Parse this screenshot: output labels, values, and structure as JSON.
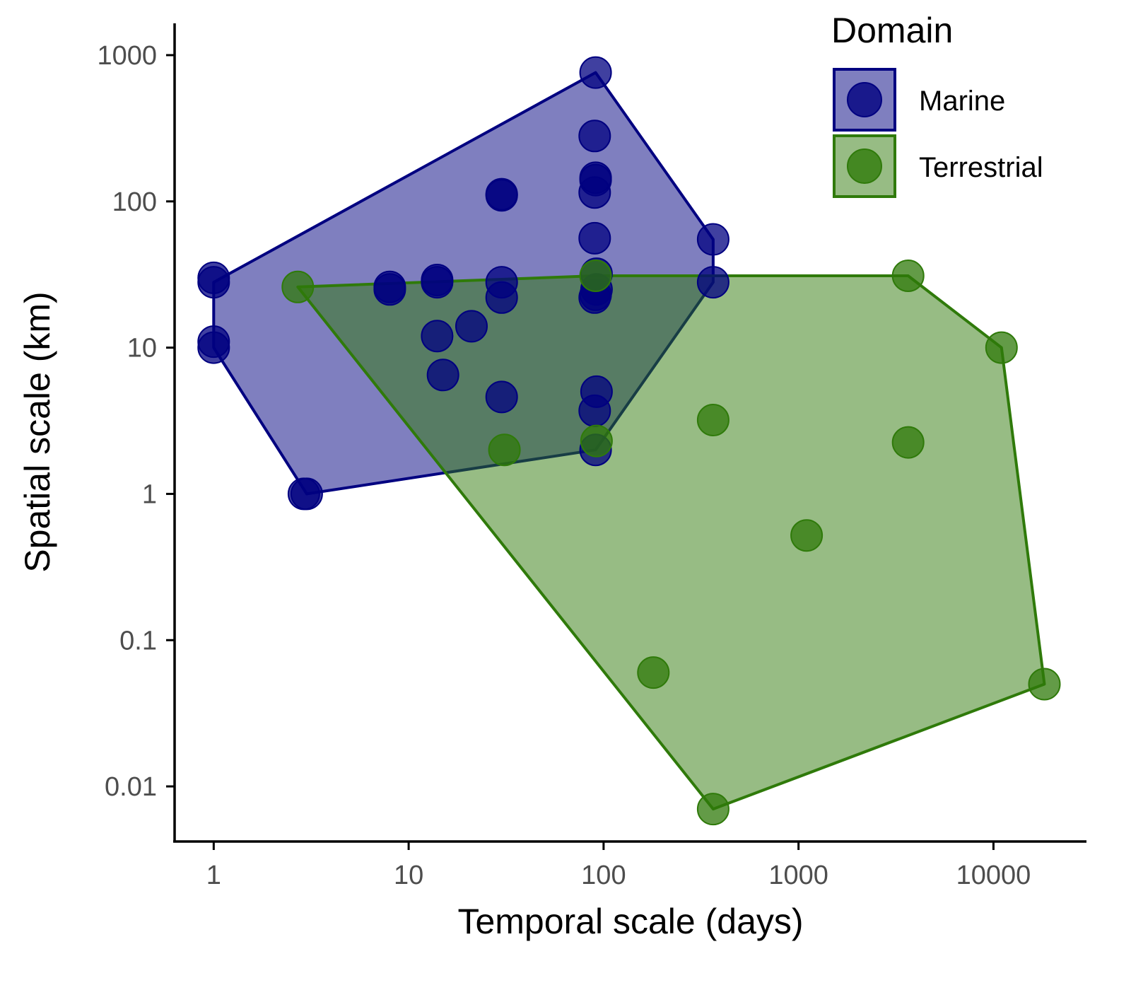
{
  "chart_data": {
    "type": "scatter",
    "xlabel": "Temporal scale (days)",
    "ylabel": "Spatial scale (km)",
    "x_scale": "log",
    "y_scale": "log",
    "xlim": [
      0.63,
      30000
    ],
    "ylim": [
      0.0042,
      1650
    ],
    "x_ticks": [
      1,
      10,
      100,
      1000,
      10000
    ],
    "x_tick_labels": [
      "1",
      "10",
      "100",
      "1000",
      "10000"
    ],
    "y_ticks": [
      0.01,
      0.1,
      1,
      10,
      100,
      1000
    ],
    "y_tick_labels": [
      "0.01",
      "0.1",
      "1",
      "10",
      "100",
      "1000"
    ],
    "grid": false,
    "legend": {
      "title": "Domain",
      "position": "top-right"
    },
    "series": [
      {
        "name": "Marine",
        "color": "#000080",
        "hull": [
          [
            1,
            28
          ],
          [
            91,
            760
          ],
          [
            365,
            55
          ],
          [
            365,
            28
          ],
          [
            91,
            2
          ],
          [
            3,
            1
          ],
          [
            1,
            10
          ]
        ],
        "points": [
          [
            1,
            30
          ],
          [
            1,
            28
          ],
          [
            1,
            11
          ],
          [
            1,
            10
          ],
          [
            3,
            1
          ],
          [
            2.9,
            1
          ],
          [
            8,
            26
          ],
          [
            8,
            25
          ],
          [
            14,
            29
          ],
          [
            14,
            28
          ],
          [
            14,
            12
          ],
          [
            15,
            6.5
          ],
          [
            21,
            14
          ],
          [
            30,
            110
          ],
          [
            30,
            112
          ],
          [
            30,
            28
          ],
          [
            30,
            22
          ],
          [
            30,
            4.6
          ],
          [
            91,
            760
          ],
          [
            90,
            280
          ],
          [
            91,
            145
          ],
          [
            91,
            140
          ],
          [
            90,
            115
          ],
          [
            90,
            56
          ],
          [
            92,
            32
          ],
          [
            92,
            25
          ],
          [
            91,
            23
          ],
          [
            90,
            22
          ],
          [
            92,
            5
          ],
          [
            90,
            3.7
          ],
          [
            91,
            2
          ],
          [
            365,
            55
          ],
          [
            365,
            28
          ]
        ]
      },
      {
        "name": "Terrestrial",
        "color": "#2f7a0a",
        "hull": [
          [
            2.7,
            26
          ],
          [
            91,
            31
          ],
          [
            3650,
            31
          ],
          [
            11000,
            10
          ],
          [
            18250,
            0.05
          ],
          [
            365,
            0.007
          ]
        ],
        "points": [
          [
            2.7,
            26
          ],
          [
            31,
            2
          ],
          [
            92,
            2.3
          ],
          [
            91,
            31
          ],
          [
            180,
            0.06
          ],
          [
            365,
            3.2
          ],
          [
            365,
            0.007
          ],
          [
            1100,
            0.52
          ],
          [
            3650,
            31
          ],
          [
            3650,
            2.25
          ],
          [
            11000,
            10
          ],
          [
            18250,
            0.05
          ]
        ]
      }
    ]
  }
}
